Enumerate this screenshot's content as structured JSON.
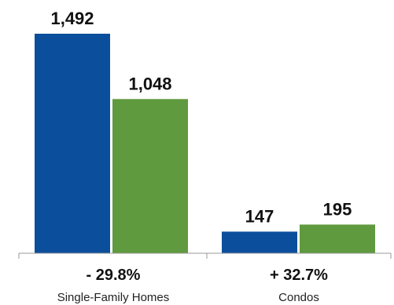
{
  "chart_data": {
    "type": "bar",
    "categories": [
      "Single-Family Homes",
      "Condos"
    ],
    "category_changes": [
      "- 29.8%",
      "+ 32.7%"
    ],
    "series": [
      {
        "values": [
          1492,
          147
        ],
        "value_labels": [
          "1,492",
          "147"
        ],
        "color": "#0b4f9c"
      },
      {
        "values": [
          1048,
          195
        ],
        "value_labels": [
          "1,048",
          "195"
        ],
        "color": "#5f9a3e"
      }
    ],
    "ylim": [
      0,
      1492
    ],
    "grid": false,
    "legend": "none"
  }
}
